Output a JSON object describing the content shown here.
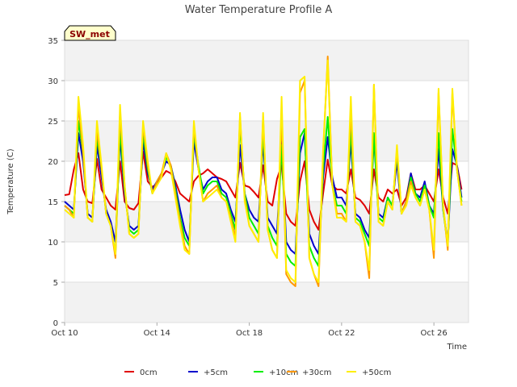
{
  "chart_data": {
    "type": "line",
    "title": "Water Temperature Profile A",
    "xlabel": "Time",
    "ylabel": "Temperature (C)",
    "badge": "SW_met",
    "ylim": [
      0,
      35
    ],
    "yticks": [
      0,
      5,
      10,
      15,
      20,
      25,
      30,
      35
    ],
    "xlim_days": [
      10,
      27.5
    ],
    "xticks": [
      {
        "day": 10,
        "label": "Oct 10"
      },
      {
        "day": 14,
        "label": "Oct 14"
      },
      {
        "day": 18,
        "label": "Oct 18"
      },
      {
        "day": 22,
        "label": "Oct 22"
      },
      {
        "day": 26,
        "label": "Oct 26"
      }
    ],
    "grid": true,
    "legend_position": "bottom",
    "x": [
      10.0,
      10.2,
      10.4,
      10.6,
      10.8,
      11.0,
      11.2,
      11.4,
      11.6,
      11.8,
      12.0,
      12.2,
      12.4,
      12.6,
      12.8,
      13.0,
      13.2,
      13.4,
      13.6,
      13.8,
      14.0,
      14.2,
      14.4,
      14.6,
      14.8,
      15.0,
      15.2,
      15.4,
      15.6,
      15.8,
      16.0,
      16.2,
      16.4,
      16.6,
      16.8,
      17.0,
      17.2,
      17.4,
      17.6,
      17.8,
      18.0,
      18.2,
      18.4,
      18.6,
      18.8,
      19.0,
      19.2,
      19.4,
      19.6,
      19.8,
      20.0,
      20.2,
      20.4,
      20.6,
      20.8,
      21.0,
      21.2,
      21.4,
      21.6,
      21.8,
      22.0,
      22.2,
      22.4,
      22.6,
      22.8,
      23.0,
      23.2,
      23.4,
      23.6,
      23.8,
      24.0,
      24.2,
      24.4,
      24.6,
      24.8,
      25.0,
      25.2,
      25.4,
      25.6,
      25.8,
      26.0,
      26.2,
      26.4,
      26.6,
      26.8,
      27.0,
      27.2
    ],
    "series": [
      {
        "name": "0cm",
        "color": "#e00000",
        "values": [
          15.8,
          15.9,
          19.0,
          21.0,
          16.5,
          15.0,
          14.8,
          20.3,
          16.5,
          15.5,
          14.5,
          14.0,
          20.0,
          15.0,
          14.2,
          14.0,
          14.8,
          21.2,
          17.5,
          16.8,
          17.2,
          18.0,
          18.8,
          18.5,
          17.5,
          16.0,
          15.5,
          15.0,
          17.5,
          18.2,
          18.5,
          19.0,
          18.5,
          18.0,
          17.8,
          17.5,
          16.5,
          15.5,
          19.8,
          17.0,
          16.8,
          16.2,
          15.5,
          19.5,
          15.0,
          14.5,
          17.8,
          19.5,
          13.5,
          12.5,
          12.0,
          17.5,
          20.0,
          14.0,
          12.5,
          11.5,
          16.0,
          20.2,
          17.0,
          16.5,
          16.5,
          16.0,
          19.0,
          15.5,
          15.2,
          14.5,
          13.5,
          19.0,
          15.5,
          15.0,
          16.5,
          16.0,
          16.5,
          14.5,
          15.5,
          18.5,
          16.5,
          16.5,
          17.0,
          16.0,
          15.0,
          19.0,
          15.5,
          13.5,
          19.8,
          19.5,
          16.5
        ]
      },
      {
        "name": "+5cm",
        "color": "#0000cc",
        "values": [
          15.0,
          14.5,
          14.0,
          23.5,
          20.0,
          13.5,
          13.0,
          22.0,
          18.0,
          14.0,
          12.5,
          10.0,
          23.0,
          16.0,
          12.0,
          11.5,
          12.0,
          22.5,
          18.5,
          16.5,
          17.5,
          18.5,
          20.0,
          19.5,
          17.0,
          14.0,
          11.5,
          10.0,
          22.5,
          19.0,
          16.5,
          17.5,
          18.0,
          18.0,
          16.5,
          16.0,
          14.0,
          12.5,
          22.0,
          16.0,
          14.0,
          13.0,
          12.5,
          22.5,
          13.0,
          12.0,
          11.0,
          22.5,
          10.0,
          9.0,
          8.5,
          21.0,
          23.5,
          11.0,
          9.5,
          8.5,
          18.0,
          23.0,
          18.0,
          15.5,
          15.5,
          14.5,
          22.5,
          13.5,
          13.0,
          11.5,
          10.5,
          23.0,
          13.5,
          13.0,
          15.5,
          14.5,
          20.0,
          13.5,
          15.0,
          18.5,
          16.0,
          15.5,
          17.5,
          14.5,
          13.5,
          21.5,
          14.0,
          10.0,
          21.5,
          19.5,
          15.5
        ]
      },
      {
        "name": "+10cm",
        "color": "#00ee00",
        "values": [
          14.5,
          14.0,
          13.5,
          25.0,
          21.0,
          13.0,
          12.5,
          23.0,
          19.0,
          13.5,
          12.0,
          8.5,
          24.0,
          16.5,
          11.5,
          11.0,
          11.5,
          23.5,
          19.0,
          16.0,
          17.5,
          18.5,
          20.5,
          19.5,
          16.5,
          13.0,
          10.5,
          9.5,
          23.5,
          19.5,
          16.0,
          17.0,
          17.5,
          17.5,
          16.0,
          15.5,
          13.5,
          11.5,
          24.5,
          16.0,
          13.0,
          12.0,
          11.0,
          24.0,
          12.0,
          10.5,
          9.5,
          22.0,
          8.5,
          7.5,
          7.0,
          23.0,
          24.0,
          9.5,
          8.0,
          7.0,
          19.0,
          25.5,
          17.0,
          14.5,
          14.5,
          13.5,
          24.0,
          13.0,
          12.5,
          11.0,
          9.5,
          23.5,
          13.0,
          12.5,
          15.5,
          14.5,
          21.0,
          13.5,
          15.0,
          18.0,
          16.0,
          15.0,
          17.0,
          14.5,
          13.0,
          23.5,
          14.0,
          9.5,
          24.0,
          19.0,
          15.0
        ]
      },
      {
        "name": "+30cm",
        "color": "#ff9900",
        "values": [
          14.5,
          14.0,
          13.0,
          27.0,
          21.0,
          13.0,
          12.5,
          24.0,
          19.0,
          13.5,
          12.0,
          8.0,
          26.0,
          17.0,
          11.0,
          10.5,
          11.0,
          24.5,
          19.5,
          16.0,
          17.5,
          18.5,
          21.0,
          19.5,
          16.0,
          12.5,
          9.5,
          8.5,
          24.5,
          19.0,
          15.0,
          16.0,
          16.5,
          17.0,
          15.5,
          15.0,
          13.0,
          10.5,
          25.5,
          15.5,
          12.0,
          11.0,
          10.0,
          25.5,
          11.5,
          9.0,
          8.0,
          26.0,
          6.0,
          5.0,
          4.5,
          28.5,
          30.0,
          8.0,
          6.0,
          4.5,
          21.0,
          33.0,
          17.0,
          13.5,
          13.5,
          12.5,
          26.5,
          12.5,
          12.0,
          10.0,
          5.5,
          29.5,
          12.5,
          12.0,
          15.0,
          14.0,
          21.5,
          13.5,
          15.0,
          17.5,
          15.5,
          14.5,
          16.5,
          14.0,
          8.0,
          28.5,
          14.5,
          9.0,
          28.5,
          19.0,
          14.5
        ]
      },
      {
        "name": "+50cm",
        "color": "#ffee00",
        "values": [
          14.0,
          13.5,
          13.0,
          28.0,
          22.0,
          13.0,
          12.5,
          25.0,
          19.5,
          13.5,
          12.0,
          8.5,
          27.0,
          17.0,
          11.0,
          10.5,
          11.0,
          25.0,
          20.0,
          16.0,
          17.0,
          18.0,
          21.0,
          19.0,
          15.5,
          12.0,
          9.0,
          8.5,
          25.0,
          19.0,
          15.0,
          15.5,
          16.0,
          16.5,
          15.5,
          15.0,
          12.5,
          10.0,
          26.0,
          15.0,
          12.0,
          11.0,
          10.0,
          26.0,
          11.5,
          9.0,
          8.0,
          28.0,
          6.5,
          5.5,
          5.0,
          30.0,
          30.5,
          8.0,
          6.0,
          5.0,
          21.5,
          32.5,
          17.0,
          13.0,
          13.0,
          12.5,
          28.0,
          12.5,
          12.0,
          10.0,
          6.5,
          29.5,
          12.5,
          12.0,
          15.0,
          14.0,
          22.0,
          13.5,
          14.5,
          17.0,
          15.5,
          14.5,
          16.5,
          14.0,
          9.0,
          29.0,
          14.5,
          9.5,
          29.0,
          19.0,
          14.5
        ]
      }
    ]
  }
}
